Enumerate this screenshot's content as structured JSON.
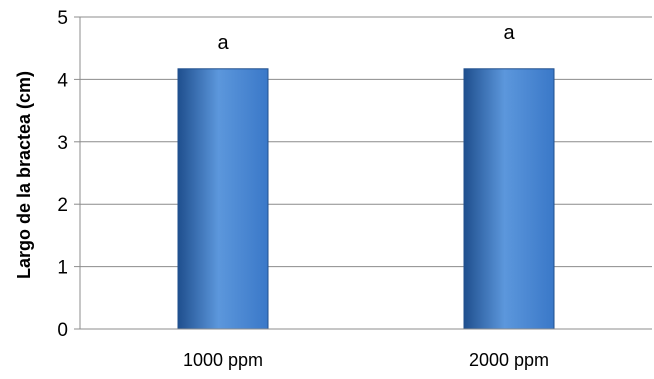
{
  "chart_data": {
    "type": "bar",
    "categories": [
      "1000 ppm",
      "2000 ppm"
    ],
    "values": [
      4.17,
      4.17
    ],
    "data_labels": [
      "a",
      "a"
    ],
    "title": "",
    "xlabel": "",
    "ylabel": "Largo de la  bractea (cm)",
    "ylim": [
      0,
      5
    ],
    "yticks": [
      "0",
      "1",
      "2",
      "3",
      "4",
      "5"
    ],
    "grid": true,
    "legend": "none",
    "bar_color": "#3A78C8",
    "bar_color_dark": "#1F4F8E",
    "bar_color_light": "#5C97DC",
    "grid_color": "#8C8C8C"
  }
}
